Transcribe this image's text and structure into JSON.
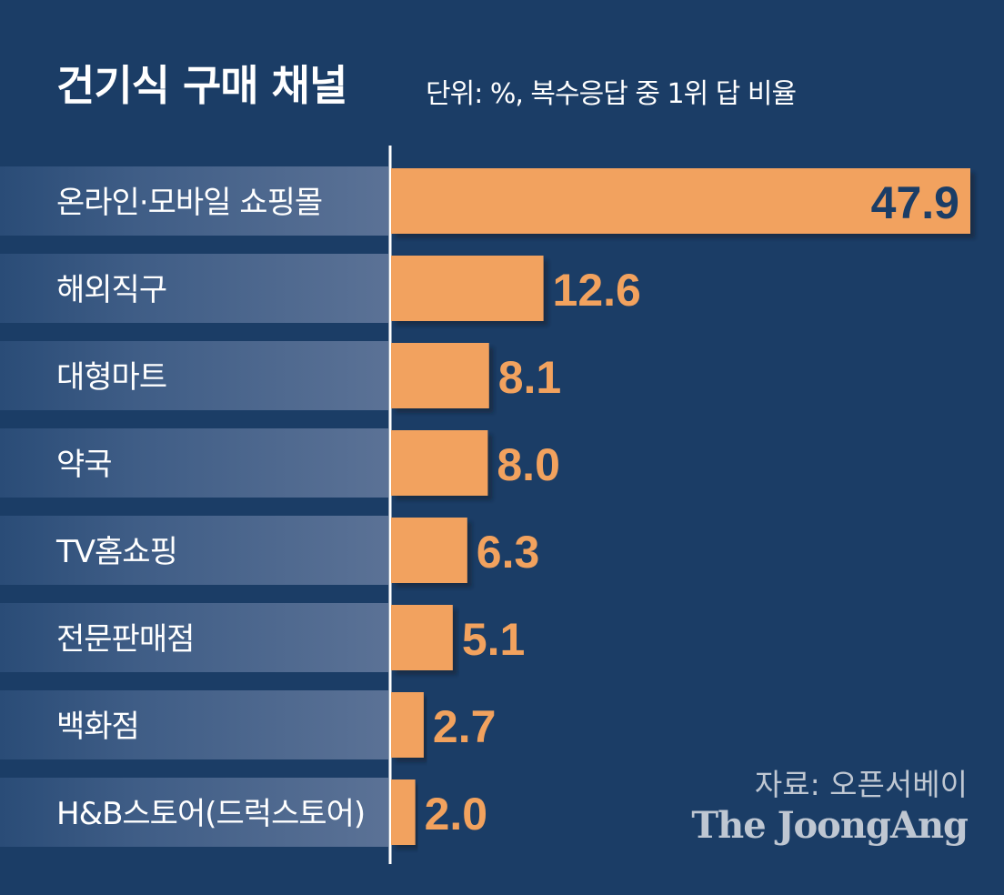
{
  "chart_data": {
    "type": "bar",
    "orientation": "horizontal",
    "title": "건기식 구매 채널",
    "subtitle": "단위: %, 복수응답 중 1위 답 비율",
    "categories": [
      "온라인·모바일 쇼핑몰",
      "해외직구",
      "대형마트",
      "약국",
      "TV홈쇼핑",
      "전문판매점",
      "백화점",
      "H&B스토어(드럭스토어)"
    ],
    "values": [
      47.9,
      12.6,
      8.1,
      8.0,
      6.3,
      5.1,
      2.7,
      2.0
    ],
    "value_labels": [
      "47.9",
      "12.6",
      "8.1",
      "8.0",
      "6.3",
      "5.1",
      "2.7",
      "2.0"
    ],
    "xlim": [
      0,
      47.9
    ],
    "grid": false,
    "legend": "none"
  },
  "source": "자료: 오픈서베이",
  "brand": "The JoongAng",
  "colors": {
    "background": "#1b3d66",
    "bar": "#f2a25e",
    "label_band": "#5a7196",
    "label_text": "#ffffff",
    "value_text_outside": "#f2a25e",
    "value_text_inside": "#1b3d66"
  }
}
